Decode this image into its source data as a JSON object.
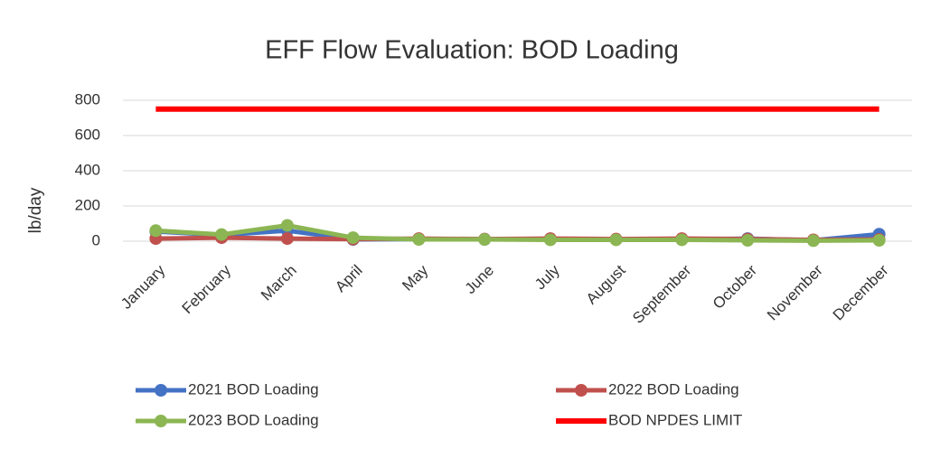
{
  "chart_data": {
    "type": "line",
    "title": "EFF Flow Evaluation: BOD Loading",
    "y_label": "lb/day",
    "categories": [
      "January",
      "February",
      "March",
      "April",
      "May",
      "June",
      "July",
      "August",
      "September",
      "October",
      "November",
      "December"
    ],
    "series": [
      {
        "name": "2021 BOD Loading",
        "color": "#4472c4",
        "marker": true,
        "values": [
          55,
          35,
          60,
          10,
          12,
          10,
          10,
          10,
          10,
          15,
          5,
          40
        ]
      },
      {
        "name": "2022 BOD Loading",
        "color": "#c0504d",
        "marker": true,
        "values": [
          15,
          20,
          15,
          12,
          15,
          12,
          15,
          12,
          15,
          12,
          8,
          10
        ]
      },
      {
        "name": "2023 BOD Loading",
        "color": "#8cb653",
        "marker": true,
        "values": [
          60,
          38,
          90,
          20,
          10,
          10,
          8,
          8,
          8,
          5,
          3,
          5
        ]
      },
      {
        "name": "BOD NPDES LIMIT",
        "color": "#ff0000",
        "marker": false,
        "values": [
          750,
          750,
          750,
          750,
          750,
          750,
          750,
          750,
          750,
          750,
          750,
          750
        ]
      }
    ],
    "ylim": [
      0,
      800
    ],
    "yticks": [
      0,
      200,
      400,
      600,
      800
    ],
    "grid": true,
    "legend": "bottom"
  }
}
